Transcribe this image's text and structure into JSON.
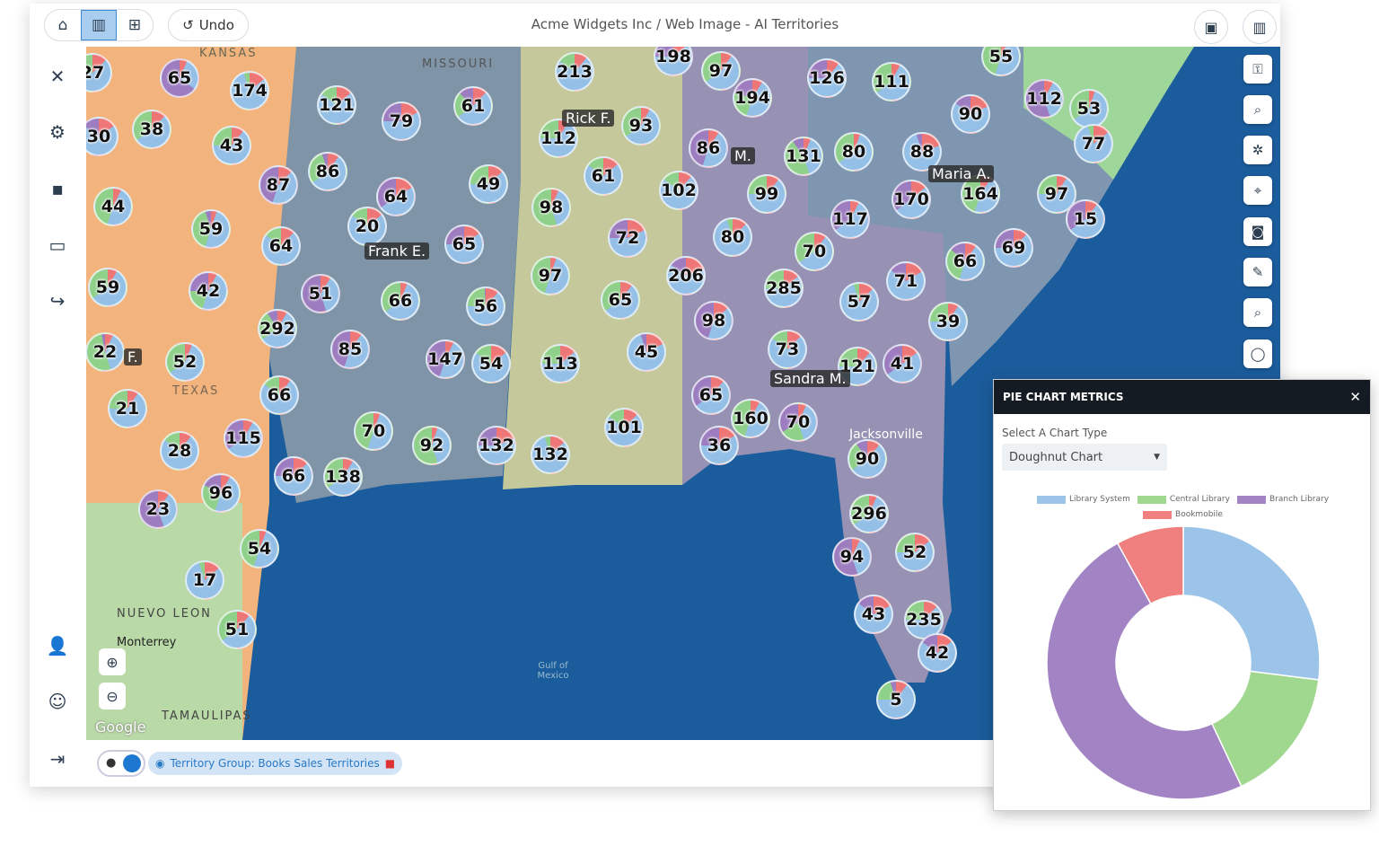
{
  "header": {
    "title": "Acme Widgets Inc / Web Image - AI Territories",
    "undo_label": "Undo",
    "view_icons": [
      "home-icon",
      "map-icon",
      "table-icon"
    ],
    "right_icons": [
      "image-icon",
      "map-add-icon"
    ]
  },
  "sidebar": {
    "icons": [
      "tools-icon",
      "gear-icon",
      "save-icon",
      "presentation-icon",
      "share-icon"
    ],
    "bottom_icons": [
      "user-cog-icon",
      "user-headset-icon",
      "sign-out-icon"
    ]
  },
  "map_tools": [
    "key-icon",
    "search-icon",
    "puzzle-icon",
    "crosshair-icon",
    "camera-icon",
    "pencil-icon",
    "zoom-search-icon",
    "lasso-icon"
  ],
  "map": {
    "clusters": [
      65,
      174,
      121,
      79,
      61,
      213,
      198,
      97,
      194,
      126,
      111,
      55,
      112,
      53,
      77,
      90,
      27,
      38,
      30,
      43,
      86,
      87,
      112,
      93,
      86,
      131,
      80,
      88,
      61,
      49,
      64,
      102,
      99,
      170,
      164,
      97,
      15,
      44,
      98,
      117,
      59,
      20,
      72,
      80,
      64,
      65,
      70,
      66,
      69,
      59,
      42,
      51,
      66,
      97,
      206,
      285,
      57,
      71,
      56,
      65,
      98,
      39,
      292,
      85,
      22,
      52,
      147,
      54,
      113,
      45,
      73,
      121,
      41,
      66,
      21,
      65,
      160,
      70,
      115,
      70,
      92,
      132,
      132,
      101,
      36,
      90,
      28,
      66,
      138,
      96,
      23,
      296,
      54,
      94,
      52,
      17,
      43,
      235,
      51,
      42,
      5
    ],
    "reps": [
      "Rick F.",
      "Frank E.",
      "Sandra M.",
      "Maria A.",
      "M.",
      "F."
    ],
    "labels": [
      "KANSAS",
      "MISSOURI",
      "TEXAS",
      "Gulf of Mexico",
      "NUEVO LEON",
      "TAMAULIPAS",
      "Jacksonville",
      "Monterrey",
      "Google"
    ],
    "colors": {
      "library_system": "#94bfe6",
      "central_library": "#8fd08a",
      "branch_library": "#9d7dc0",
      "bookmobile": "#ee7676",
      "ocean": "#1b5c9c"
    }
  },
  "bottom": {
    "territory_chip": "Territory Group: Books Sales Territories"
  },
  "panel": {
    "title": "PIE CHART METRICS",
    "close": "✕",
    "select_label": "Select A Chart Type",
    "select_value": "Doughnut Chart"
  },
  "chart_data": {
    "type": "pie",
    "subtype": "doughnut",
    "legend_position": "top",
    "categories": [
      "Library System",
      "Central Library",
      "Branch Library",
      "Bookmobile"
    ],
    "values": [
      27,
      16,
      49,
      8
    ],
    "colors": [
      "#9cc3e8",
      "#a0d88f",
      "#a283c3",
      "#f08080"
    ]
  }
}
